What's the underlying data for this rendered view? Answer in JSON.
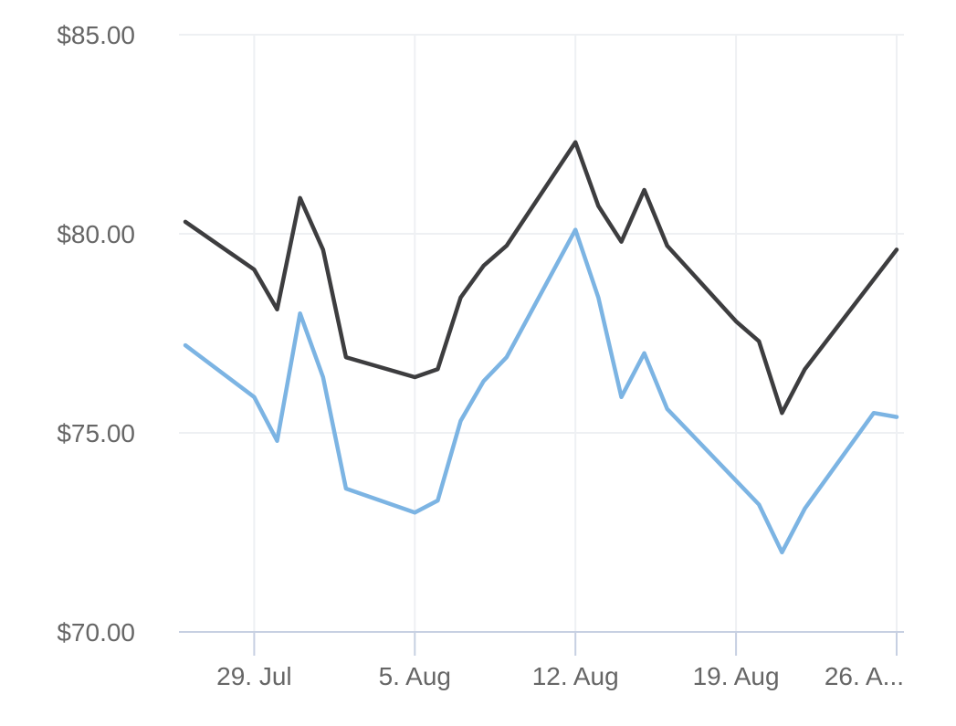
{
  "chart_data": {
    "type": "line",
    "title": "",
    "xlabel": "",
    "ylabel": "",
    "ylim": [
      70,
      85
    ],
    "y_ticks": [
      {
        "value": 70,
        "label": "$70.00"
      },
      {
        "value": 75,
        "label": "$75.00"
      },
      {
        "value": 80,
        "label": "$80.00"
      },
      {
        "value": 85,
        "label": "$85.00"
      }
    ],
    "x_ticks": [
      {
        "date": "2024-07-29",
        "label": "29. Jul"
      },
      {
        "date": "2024-08-05",
        "label": "5. Aug"
      },
      {
        "date": "2024-08-12",
        "label": "12. Aug"
      },
      {
        "date": "2024-08-19",
        "label": "19. Aug"
      },
      {
        "date": "2024-08-26",
        "label": "26. A..."
      }
    ],
    "x_range": [
      "2024-07-26",
      "2024-08-26"
    ],
    "grid": true,
    "series": [
      {
        "color": "#3d3d3f",
        "points": [
          {
            "date": "2024-07-26",
            "y": 80.3
          },
          {
            "date": "2024-07-29",
            "y": 79.1
          },
          {
            "date": "2024-07-30",
            "y": 78.1
          },
          {
            "date": "2024-07-31",
            "y": 80.9
          },
          {
            "date": "2024-08-01",
            "y": 79.6
          },
          {
            "date": "2024-08-02",
            "y": 76.9
          },
          {
            "date": "2024-08-05",
            "y": 76.4
          },
          {
            "date": "2024-08-06",
            "y": 76.6
          },
          {
            "date": "2024-08-07",
            "y": 78.4
          },
          {
            "date": "2024-08-08",
            "y": 79.2
          },
          {
            "date": "2024-08-09",
            "y": 79.7
          },
          {
            "date": "2024-08-12",
            "y": 82.3
          },
          {
            "date": "2024-08-13",
            "y": 80.7
          },
          {
            "date": "2024-08-14",
            "y": 79.8
          },
          {
            "date": "2024-08-15",
            "y": 81.1
          },
          {
            "date": "2024-08-16",
            "y": 79.7
          },
          {
            "date": "2024-08-19",
            "y": 77.8
          },
          {
            "date": "2024-08-20",
            "y": 77.3
          },
          {
            "date": "2024-08-21",
            "y": 75.5
          },
          {
            "date": "2024-08-22",
            "y": 76.6
          },
          {
            "date": "2024-08-26",
            "y": 79.6
          }
        ]
      },
      {
        "color": "#7cb4e3",
        "points": [
          {
            "date": "2024-07-26",
            "y": 77.2
          },
          {
            "date": "2024-07-29",
            "y": 75.9
          },
          {
            "date": "2024-07-30",
            "y": 74.8
          },
          {
            "date": "2024-07-31",
            "y": 78.0
          },
          {
            "date": "2024-08-01",
            "y": 76.4
          },
          {
            "date": "2024-08-02",
            "y": 73.6
          },
          {
            "date": "2024-08-05",
            "y": 73.0
          },
          {
            "date": "2024-08-06",
            "y": 73.3
          },
          {
            "date": "2024-08-07",
            "y": 75.3
          },
          {
            "date": "2024-08-08",
            "y": 76.3
          },
          {
            "date": "2024-08-09",
            "y": 76.9
          },
          {
            "date": "2024-08-12",
            "y": 80.1
          },
          {
            "date": "2024-08-13",
            "y": 78.4
          },
          {
            "date": "2024-08-14",
            "y": 75.9
          },
          {
            "date": "2024-08-15",
            "y": 77.0
          },
          {
            "date": "2024-08-16",
            "y": 75.6
          },
          {
            "date": "2024-08-19",
            "y": 73.8
          },
          {
            "date": "2024-08-20",
            "y": 73.2
          },
          {
            "date": "2024-08-21",
            "y": 72.0
          },
          {
            "date": "2024-08-22",
            "y": 73.1
          },
          {
            "date": "2024-08-25",
            "y": 75.5
          },
          {
            "date": "2024-08-26",
            "y": 75.4
          }
        ]
      }
    ]
  }
}
